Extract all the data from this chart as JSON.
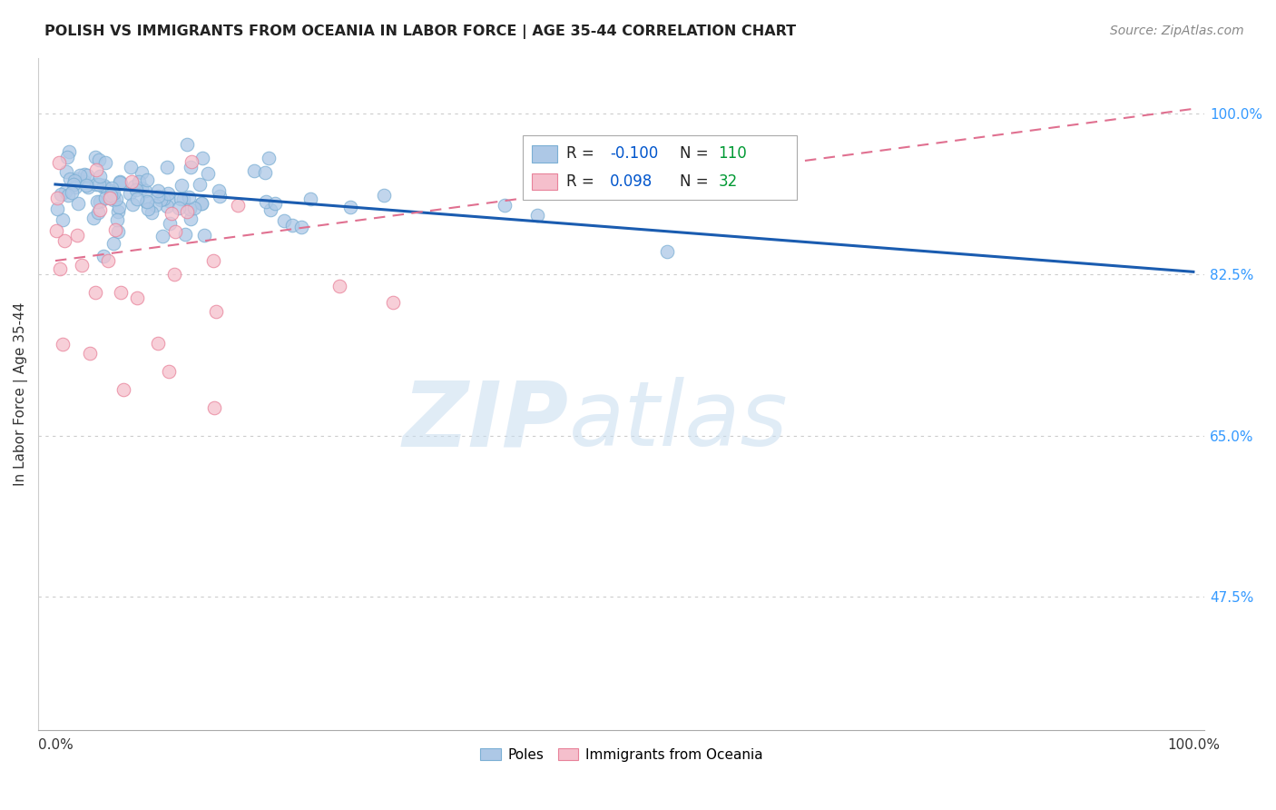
{
  "title": "POLISH VS IMMIGRANTS FROM OCEANIA IN LABOR FORCE | AGE 35-44 CORRELATION CHART",
  "source": "Source: ZipAtlas.com",
  "ylabel": "In Labor Force | Age 35-44",
  "poles_color": "#adc8e6",
  "poles_edge_color": "#7bafd4",
  "oceania_color": "#f5bfcc",
  "oceania_edge_color": "#e8829a",
  "poles_R": -0.1,
  "poles_N": 110,
  "oceania_R": 0.098,
  "oceania_N": 32,
  "legend_R_color": "#0055cc",
  "legend_N_color": "#009933",
  "watermark_zip": "ZIP",
  "watermark_atlas": "atlas",
  "background_color": "#ffffff",
  "grid_color": "#cccccc",
  "marker_size": 110,
  "poles_line_color": "#1a5cb0",
  "oceania_line_color": "#e07090",
  "ylim_low": 0.33,
  "ylim_high": 1.06,
  "xlim_low": -0.015,
  "xlim_high": 1.01
}
